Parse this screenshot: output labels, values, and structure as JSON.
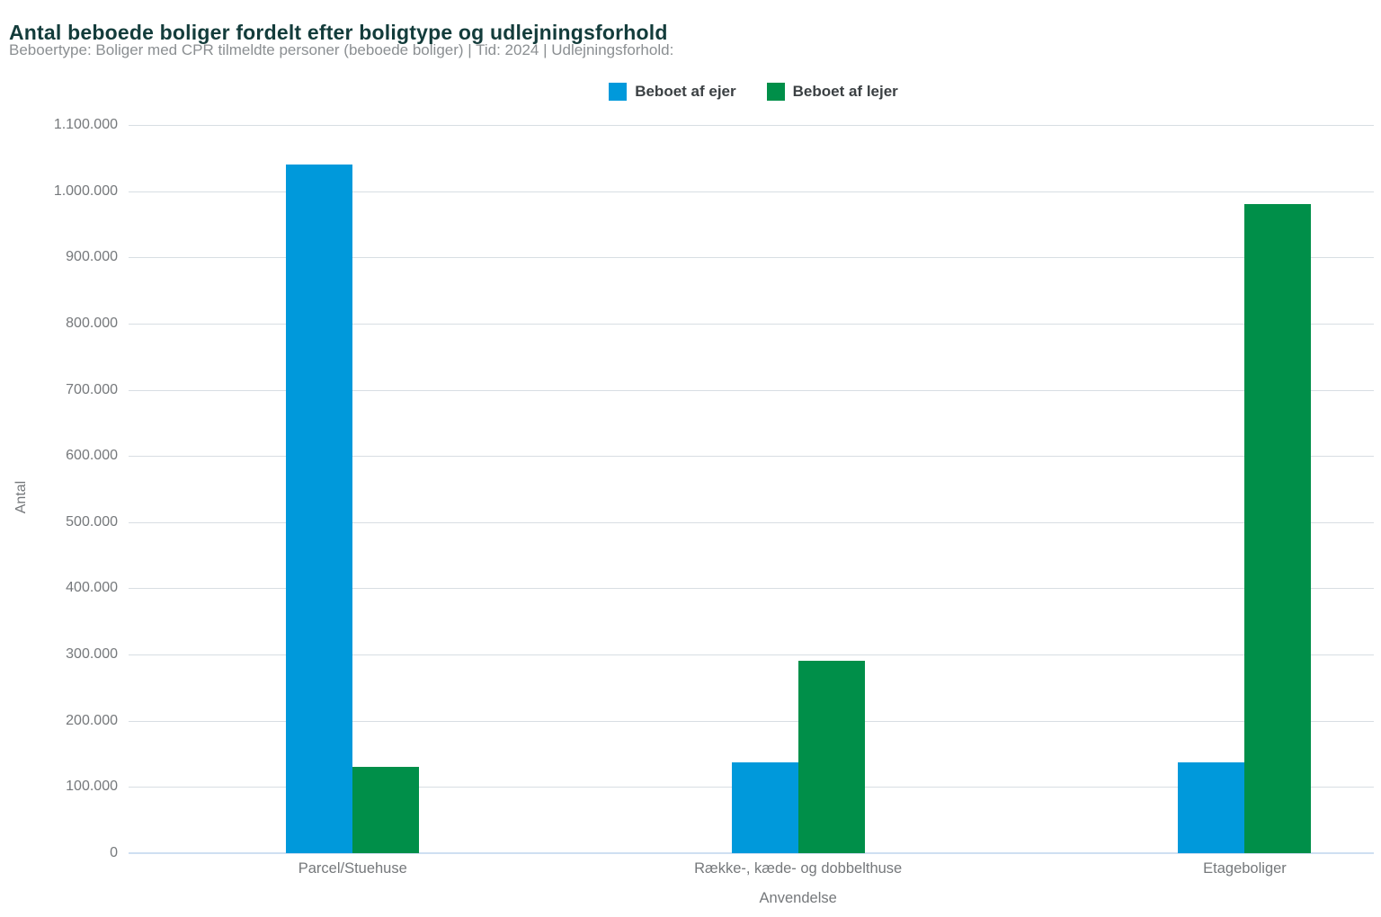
{
  "colors": {
    "title": "#133c3b",
    "subtitle": "#8b8f92",
    "axis_text": "#75787b",
    "legend_text": "#3b4043",
    "gridline": "#d8dee3",
    "baseline": "#cfdff2"
  },
  "chart_data": {
    "type": "bar",
    "title": "Antal beboede boliger fordelt efter boligtype og udlejningsforhold",
    "subtitle": "Beboertype: Boliger med CPR tilmeldte personer (beboede boliger) | Tid: 2024 | Udlejningsforhold:",
    "categories": [
      "Parcel/Stuehuse",
      "Række-, kæde- og dobbelthuse",
      "Etageboliger"
    ],
    "series": [
      {
        "name": "Beboet af ejer",
        "color": "#0099db",
        "values": [
          1040000,
          137000,
          137000
        ]
      },
      {
        "name": "Beboet af lejer",
        "color": "#008f49",
        "values": [
          130000,
          290000,
          980000
        ]
      }
    ],
    "xlabel": "Anvendelse",
    "ylabel": "Antal",
    "ylim": [
      0,
      1100000
    ],
    "ytick_step": 100000,
    "ytick_labels": [
      "0",
      "100.000",
      "200.000",
      "300.000",
      "400.000",
      "500.000",
      "600.000",
      "700.000",
      "800.000",
      "900.000",
      "1.000.000",
      "1.100.000"
    ],
    "grid": true,
    "legend_position": "top"
  }
}
